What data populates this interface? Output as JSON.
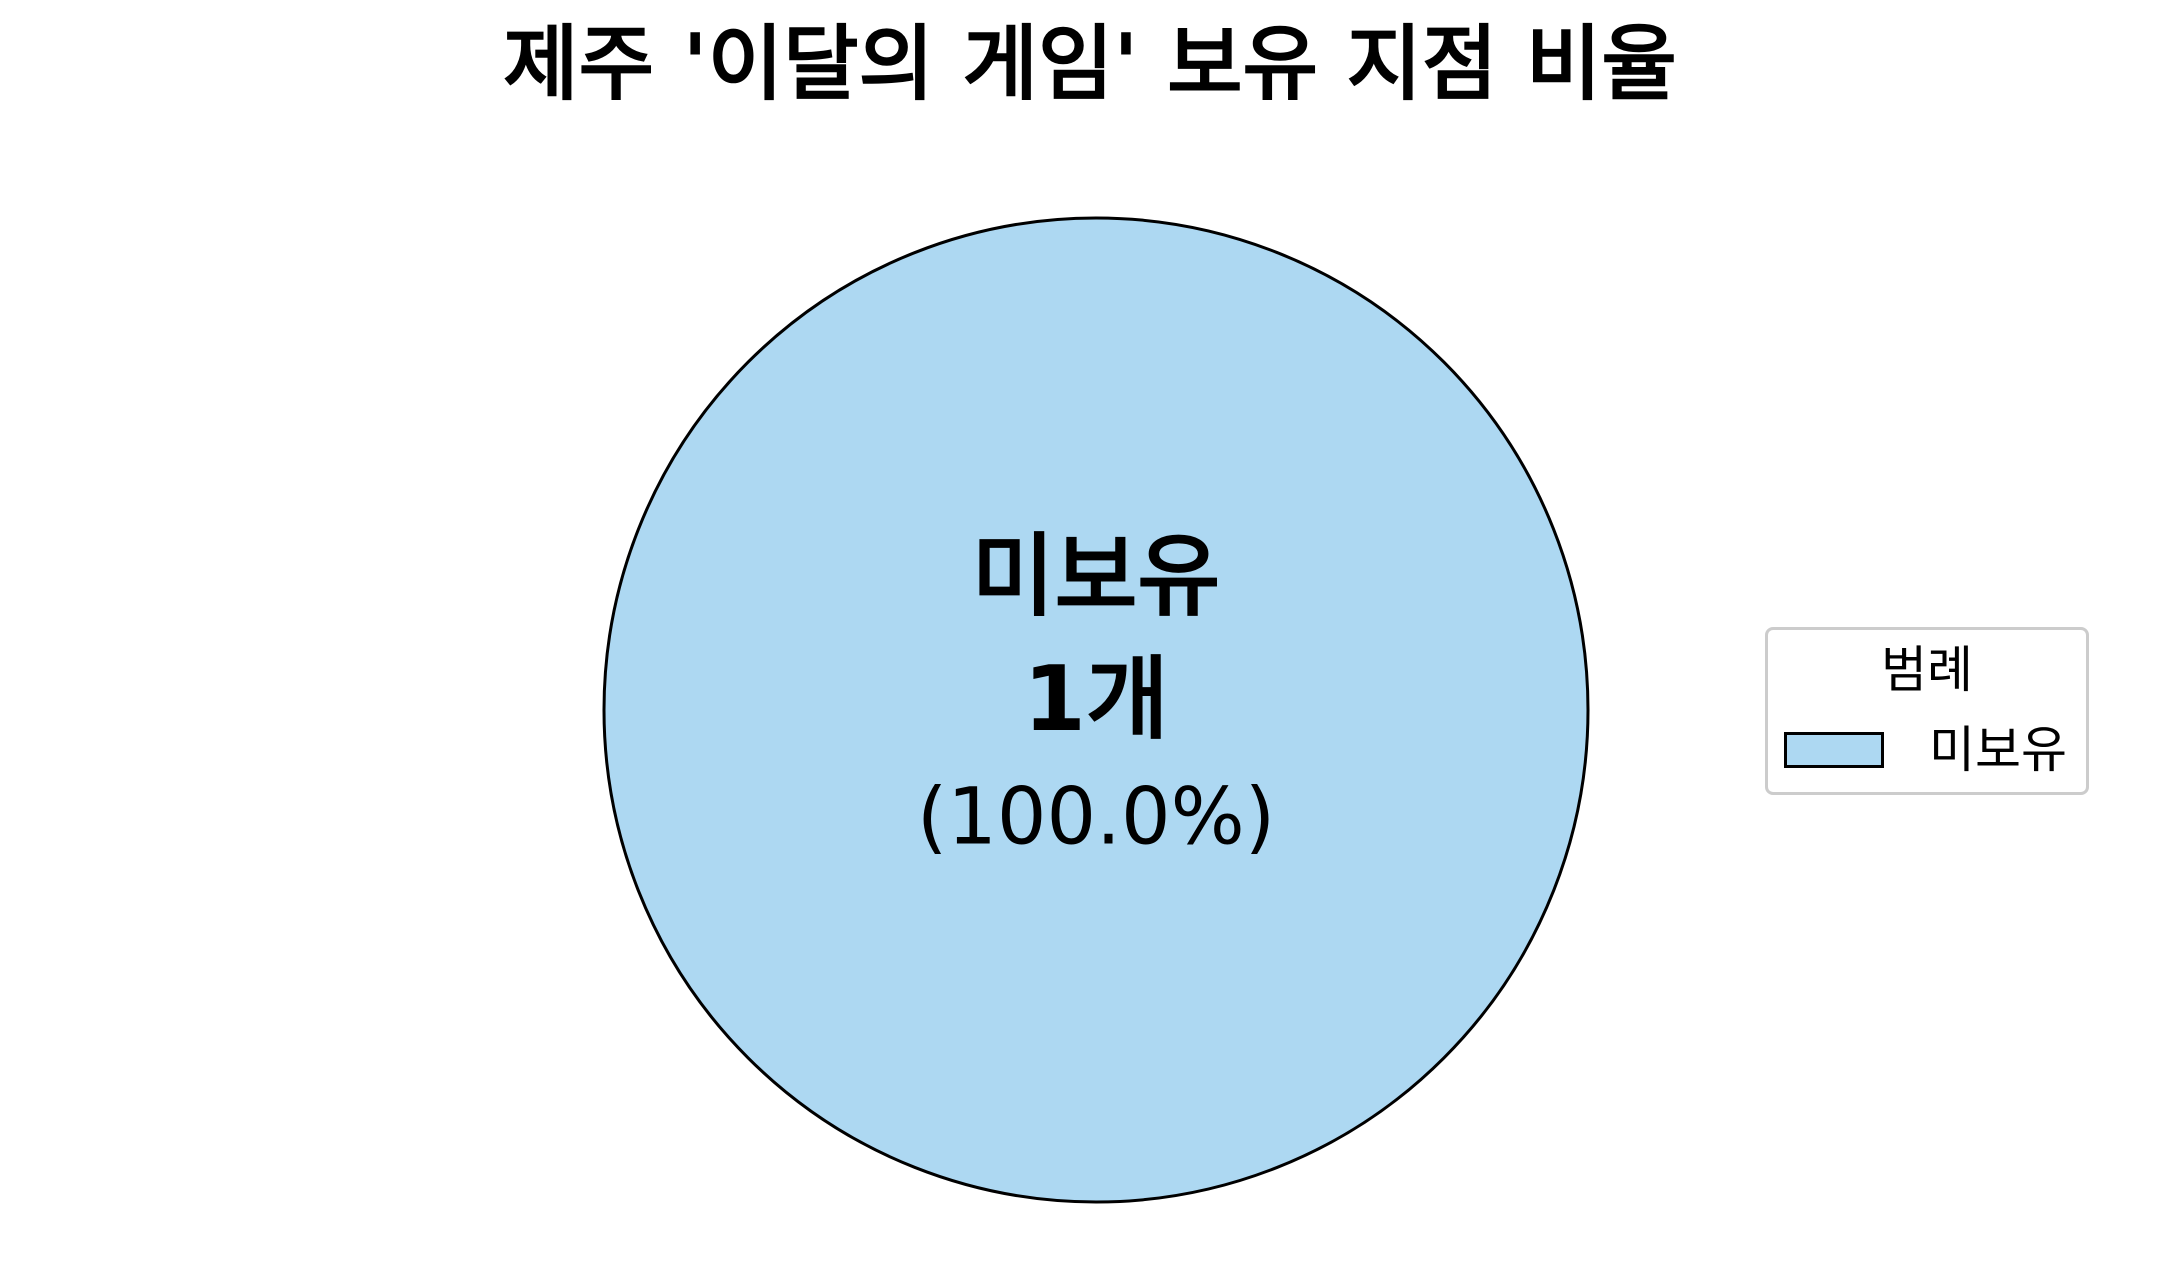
{
  "chart_data": {
    "type": "pie",
    "title": "제주 '이달의 게임' 보유 지점 비율",
    "slices": [
      {
        "label": "미보유",
        "value": 1,
        "count_label": "1개",
        "percent_label": "(100.0%)",
        "color": "#add8f2"
      }
    ],
    "legend": {
      "title": "범례",
      "position": "right",
      "entries": [
        "미보유"
      ]
    }
  }
}
